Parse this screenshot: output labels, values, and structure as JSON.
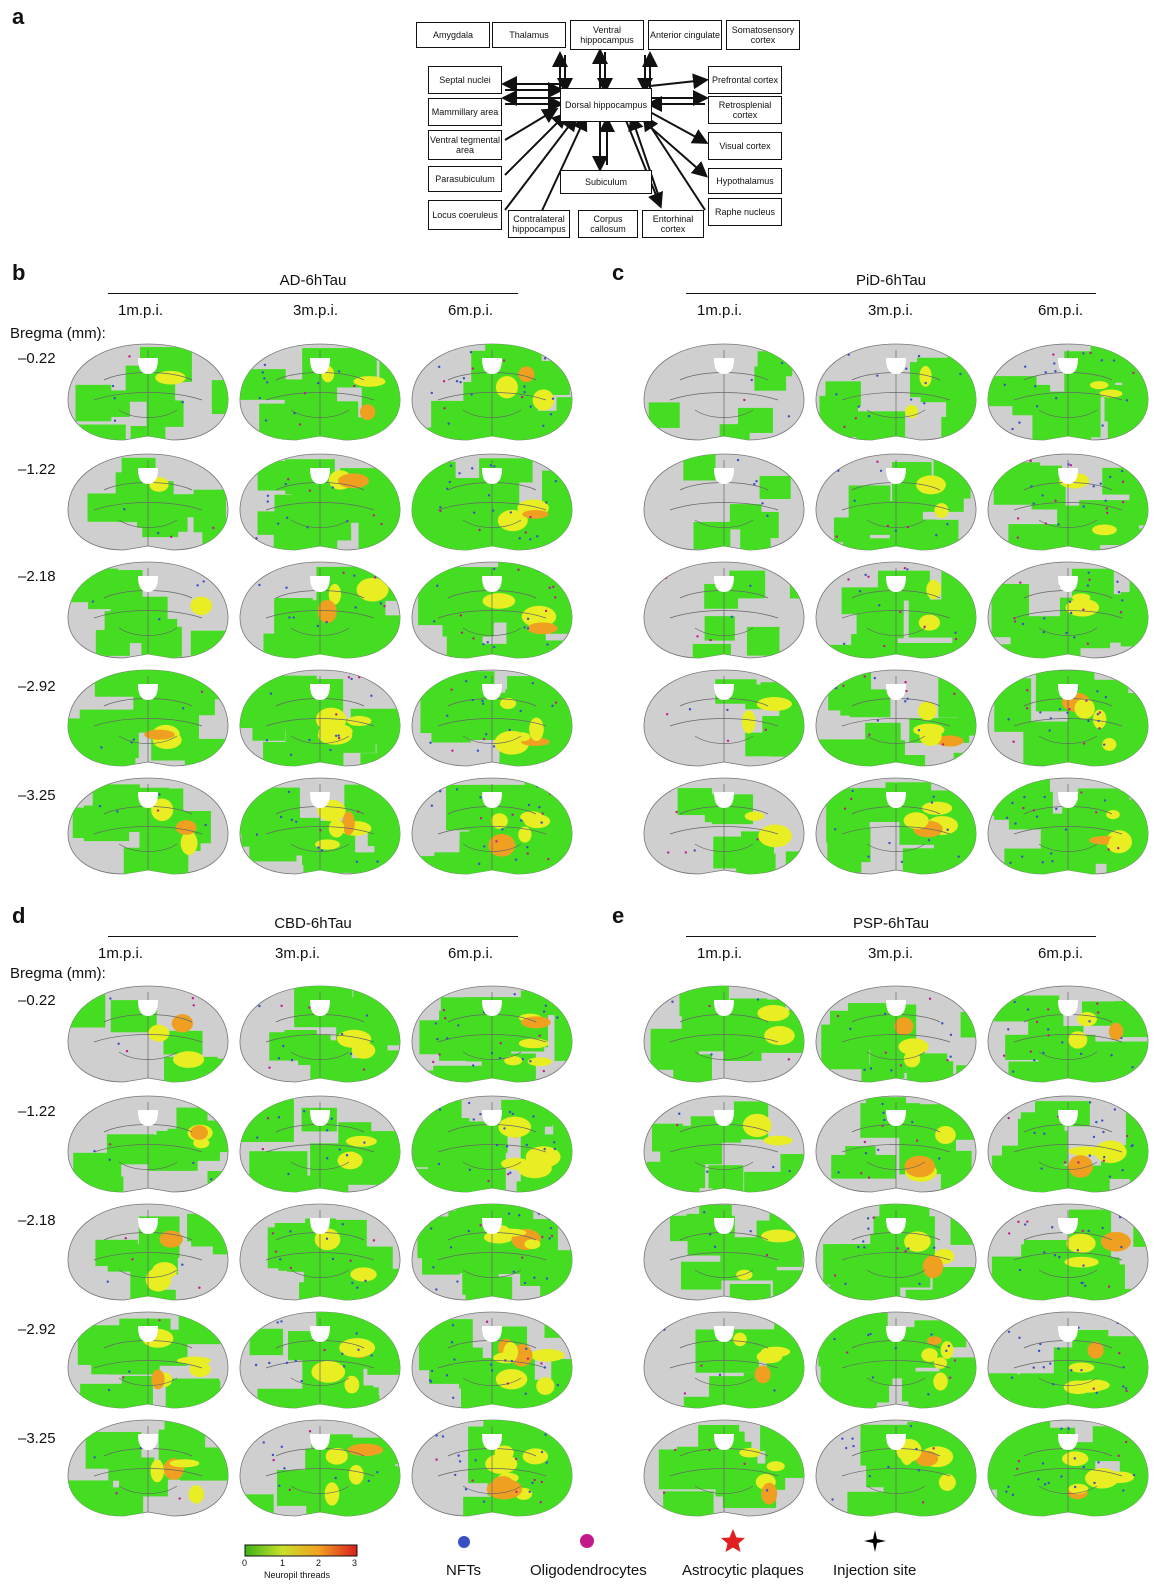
{
  "panels": [
    {
      "id": "b",
      "title": "AD-6hTau"
    },
    {
      "id": "c",
      "title": "PiD-6hTau"
    },
    {
      "id": "d",
      "title": "CBD-6hTau"
    },
    {
      "id": "e",
      "title": "PSP-6hTau"
    }
  ],
  "panel_a_label": "a",
  "timepoints": [
    "1m.p.i.",
    "3m.p.i.",
    "6m.p.i."
  ],
  "bregma_label": "Bregma (mm):",
  "bregma_levels": [
    "–0.22",
    "–1.22",
    "–2.18",
    "–2.92",
    "–3.25"
  ],
  "connectivity": {
    "center": "Dorsal hippocampus",
    "nodes": [
      "Amygdala",
      "Thalamus",
      "Ventral hippocampus",
      "Anterior cingulate",
      "Somatosensory cortex",
      "Septal nuclei",
      "Mammillary area",
      "Ventral tegmental area",
      "Parasubiculum",
      "Locus coeruleus",
      "Contralateral hippocampus",
      "Corpus callosum",
      "Subiculum",
      "Entorhinal cortex",
      "Raphe nucleus",
      "Hypothalamus",
      "Visual cortex",
      "Retrosplenial cortex",
      "Prefrontal cortex"
    ]
  },
  "legend": {
    "colorbar_ticks": [
      "0",
      "1",
      "2",
      "3"
    ],
    "colorbar_label": "Neuropil threads",
    "items": [
      {
        "label": "NFTs",
        "color": "#3b4fc4"
      },
      {
        "label": "Oligodendrocytes",
        "color": "#c21a8c"
      },
      {
        "label": "Astrocytic plaques",
        "color": "#e02020"
      },
      {
        "label": "Injection site",
        "color": "#000000"
      }
    ]
  },
  "colors": {
    "green": "#44dd22",
    "yellow": "#e8ee22",
    "gray": "#cfcfcf"
  }
}
